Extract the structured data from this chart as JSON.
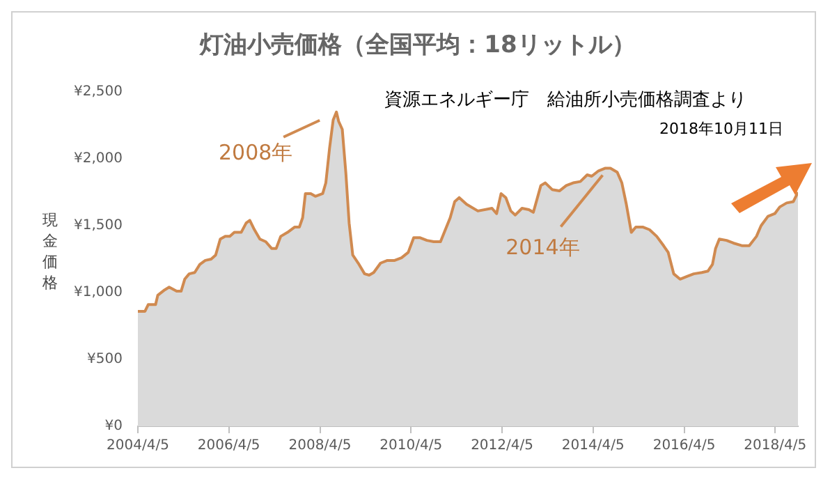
{
  "chart_data": {
    "type": "area",
    "title": "灯油小売価格（全国平均：18リットル）",
    "ylabel": "現金価格",
    "annotations": [
      {
        "text": "2008年",
        "x": "2008-08-15",
        "y": 2350
      },
      {
        "text": "2014年",
        "x": "2014-07-13",
        "y": 1930
      },
      "資源エネルギー庁　給油所小売価格調査より",
      "2018年10月11日"
    ],
    "x": [
      "2004-04-05",
      "2004-06-01",
      "2004-06-27",
      "2004-08-25",
      "2004-09-12",
      "2004-11-06",
      "2004-12-12",
      "2005-02-10",
      "2005-03-18",
      "2005-04-16",
      "2005-05-22",
      "2005-07-05",
      "2005-08-15",
      "2005-09-28",
      "2005-11-14",
      "2005-12-20",
      "2006-01-26",
      "2006-03-07",
      "2006-04-13",
      "2006-05-19",
      "2006-07-13",
      "2006-08-22",
      "2006-09-20",
      "2006-10-27",
      "2006-12-10",
      "2007-01-26",
      "2007-03-14",
      "2007-04-20",
      "2007-05-26",
      "2007-07-20",
      "2007-09-16",
      "2007-10-23",
      "2007-11-18",
      "2007-12-10",
      "2008-01-22",
      "2008-02-28",
      "2008-04-27",
      "2008-05-22",
      "2008-06-21",
      "2008-07-20",
      "2008-08-15",
      "2008-09-02",
      "2008-10-01",
      "2008-10-30",
      "2008-11-25",
      "2008-12-24",
      "2009-02-06",
      "2009-03-29",
      "2009-05-05",
      "2009-06-10",
      "2009-08-04",
      "2009-09-28",
      "2009-11-25",
      "2010-01-19",
      "2010-03-14",
      "2010-04-27",
      "2010-06-18",
      "2010-08-11",
      "2010-10-05",
      "2010-11-28",
      "2011-02-14",
      "2011-03-22",
      "2011-04-27",
      "2011-06-25",
      "2011-09-24",
      "2012-01-15",
      "2012-02-21",
      "2012-03-28",
      "2012-05-05",
      "2012-06-14",
      "2012-07-20",
      "2012-09-12",
      "2012-11-06",
      "2012-12-12",
      "2013-02-10",
      "2013-03-18",
      "2013-05-12",
      "2013-07-09",
      "2013-09-02",
      "2013-10-27",
      "2013-12-24",
      "2014-02-17",
      "2014-03-25",
      "2014-05-19",
      "2014-07-13",
      "2014-08-22",
      "2014-10-16",
      "2014-11-22",
      "2014-12-28",
      "2015-02-06",
      "2015-03-14",
      "2015-05-08",
      "2015-07-02",
      "2015-08-29",
      "2015-10-23",
      "2015-11-29",
      "2016-01-12",
      "2016-03-03",
      "2016-04-27",
      "2016-06-21",
      "2016-08-25",
      "2016-10-12",
      "2016-11-18",
      "2016-12-13",
      "2017-01-12",
      "2017-03-11",
      "2017-05-05",
      "2017-07-16",
      "2017-09-09",
      "2017-11-06",
      "2017-12-13",
      "2018-02-06",
      "2018-04-02",
      "2018-05-12",
      "2018-07-06",
      "2018-08-29",
      "2018-10-05"
    ],
    "series": [
      {
        "color": "#d08a50",
        "values": [
          860,
          860,
          910,
          910,
          980,
          1020,
          1040,
          1010,
          1010,
          1100,
          1140,
          1150,
          1210,
          1240,
          1250,
          1280,
          1400,
          1420,
          1420,
          1450,
          1450,
          1520,
          1540,
          1470,
          1400,
          1380,
          1330,
          1330,
          1420,
          1450,
          1490,
          1490,
          1560,
          1740,
          1740,
          1720,
          1740,
          1820,
          2080,
          2290,
          2350,
          2280,
          2220,
          1890,
          1520,
          1280,
          1220,
          1140,
          1130,
          1150,
          1220,
          1240,
          1240,
          1260,
          1300,
          1410,
          1410,
          1390,
          1380,
          1380,
          1560,
          1680,
          1710,
          1660,
          1610,
          1630,
          1590,
          1740,
          1710,
          1610,
          1580,
          1630,
          1620,
          1600,
          1800,
          1820,
          1770,
          1760,
          1800,
          1820,
          1830,
          1880,
          1870,
          1910,
          1930,
          1930,
          1900,
          1820,
          1660,
          1450,
          1490,
          1490,
          1470,
          1420,
          1350,
          1300,
          1140,
          1100,
          1120,
          1140,
          1150,
          1160,
          1210,
          1330,
          1400,
          1390,
          1370,
          1350,
          1350,
          1420,
          1500,
          1570,
          1590,
          1640,
          1670,
          1680,
          1750
        ]
      }
    ],
    "xlim": [
      "2004-04-05",
      "2018-10-05"
    ],
    "xticks": [
      {
        "value": "2004-04-05",
        "label": "2004/4/5"
      },
      {
        "value": "2006-04-05",
        "label": "2006/4/5"
      },
      {
        "value": "2008-04-05",
        "label": "2008/4/5"
      },
      {
        "value": "2010-04-05",
        "label": "2010/4/5"
      },
      {
        "value": "2012-04-05",
        "label": "2012/4/5"
      },
      {
        "value": "2014-04-05",
        "label": "2014/4/5"
      },
      {
        "value": "2016-04-05",
        "label": "2016/4/5"
      },
      {
        "value": "2018-04-05",
        "label": "2018/4/5"
      }
    ],
    "ylim": [
      0,
      2500
    ],
    "yticks": [
      {
        "value": 0,
        "label": "¥0"
      },
      {
        "value": 500,
        "label": "¥500"
      },
      {
        "value": 1000,
        "label": "¥1,000"
      },
      {
        "value": 1500,
        "label": "¥1,500"
      },
      {
        "value": 2000,
        "label": "¥2,000"
      },
      {
        "value": 2500,
        "label": "¥2,500"
      }
    ]
  }
}
